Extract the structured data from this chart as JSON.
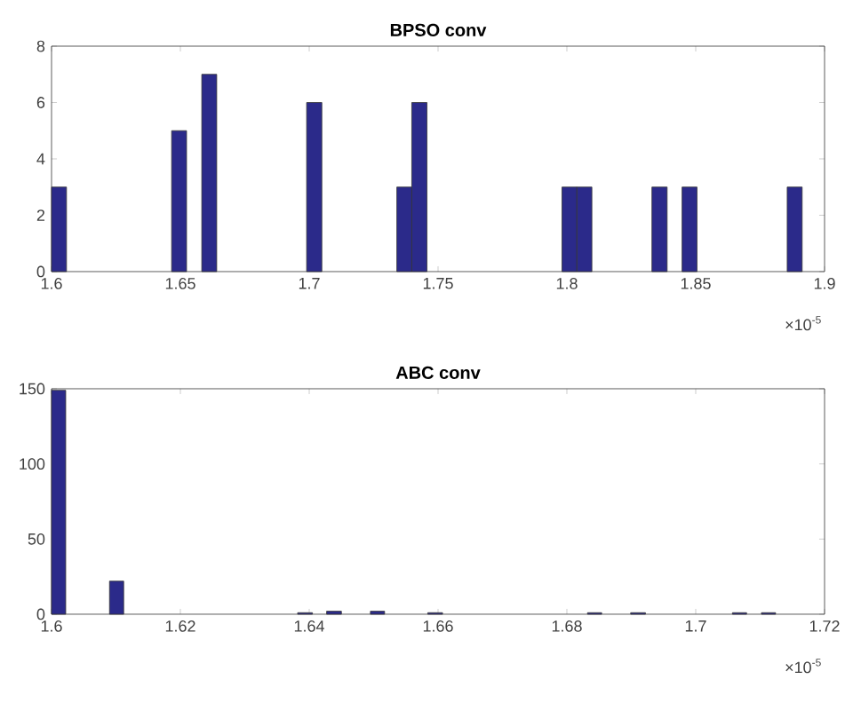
{
  "chart_data": [
    {
      "type": "histogram",
      "title": "BPSO conv",
      "color": "#2b2a8a",
      "bins": [
        1.6,
        1.6058,
        1.6466,
        1.6524,
        1.6583,
        1.6641,
        1.699,
        1.7049,
        1.734,
        1.7398,
        1.7457,
        1.7981,
        1.8039,
        1.8097,
        1.833,
        1.8389,
        1.8447,
        1.8505,
        1.8855,
        1.8913
      ],
      "values": [
        3,
        0,
        5,
        0,
        7,
        0,
        6,
        0,
        3,
        6,
        0,
        3,
        3,
        0,
        3,
        0,
        3,
        0,
        3
      ],
      "xlim": [
        1.6,
        1.9
      ],
      "xticks": [
        1.6,
        1.65,
        1.7,
        1.75,
        1.8,
        1.85,
        1.9
      ],
      "ylim": [
        0,
        8
      ],
      "yticks": [
        0,
        2,
        4,
        6,
        8
      ],
      "annotations": [
        "×10$^{-5}$"
      ]
    },
    {
      "type": "histogram",
      "title": "ABC conv",
      "color": "#2b2a8a",
      "bins": [
        1.6,
        1.6022,
        1.609,
        1.6112,
        1.6382,
        1.6405,
        1.6427,
        1.645,
        1.6495,
        1.6517,
        1.6584,
        1.6607,
        1.6832,
        1.6854,
        1.6899,
        1.6922,
        1.7057,
        1.7079,
        1.7102,
        1.7124
      ],
      "values": [
        149,
        0,
        22,
        0,
        1,
        0,
        2,
        0,
        2,
        0,
        1,
        0,
        1,
        0,
        1,
        0,
        1,
        0,
        1
      ],
      "xlim": [
        1.6,
        1.72
      ],
      "xticks": [
        1.6,
        1.62,
        1.64,
        1.66,
        1.68,
        1.7,
        1.72
      ],
      "ylim": [
        0,
        150
      ],
      "yticks": [
        0,
        50,
        100,
        150
      ],
      "annotations": [
        "×10$^{-5}$"
      ]
    }
  ]
}
